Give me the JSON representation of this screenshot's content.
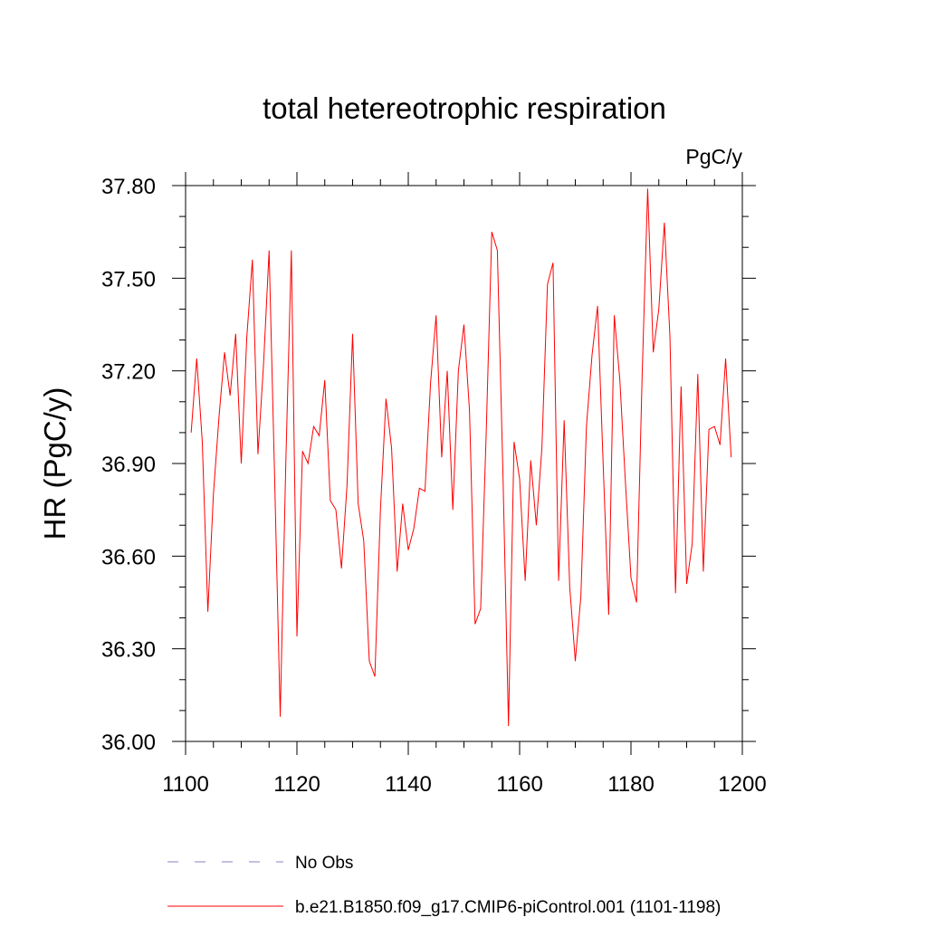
{
  "chart_data": {
    "type": "line",
    "title": "total hetereotrophic respiration",
    "units_label": "PgC/y",
    "ylabel": "HR  (PgC/y)",
    "xlabel": "",
    "xlim": [
      1100,
      1200
    ],
    "ylim": [
      36.0,
      37.8
    ],
    "x_ticks": [
      1100,
      1120,
      1140,
      1160,
      1180,
      1200
    ],
    "x_tick_labels": [
      "1100",
      "1120",
      "1140",
      "1160",
      "1180",
      "1200"
    ],
    "y_ticks": [
      36.0,
      36.3,
      36.6,
      36.9,
      37.2,
      37.5,
      37.8
    ],
    "y_tick_labels": [
      "36.00",
      "36.30",
      "36.60",
      "36.90",
      "37.20",
      "37.50",
      "37.80"
    ],
    "grid": false,
    "legend_position": "bottom",
    "series": [
      {
        "name": "No Obs",
        "color": "#8e7cc3",
        "style": "dashed",
        "x": [],
        "values": []
      },
      {
        "name": "b.e21.B1850.f09_g17.CMIP6-piControl.001 (1101-1198)",
        "color": "#ff0000",
        "style": "solid",
        "x": [
          1101,
          1102,
          1103,
          1104,
          1105,
          1106,
          1107,
          1108,
          1109,
          1110,
          1111,
          1112,
          1113,
          1114,
          1115,
          1116,
          1117,
          1118,
          1119,
          1120,
          1121,
          1122,
          1123,
          1124,
          1125,
          1126,
          1127,
          1128,
          1129,
          1130,
          1131,
          1132,
          1133,
          1134,
          1135,
          1136,
          1137,
          1138,
          1139,
          1140,
          1141,
          1142,
          1143,
          1144,
          1145,
          1146,
          1147,
          1148,
          1149,
          1150,
          1151,
          1152,
          1153,
          1154,
          1155,
          1156,
          1157,
          1158,
          1159,
          1160,
          1161,
          1162,
          1163,
          1164,
          1165,
          1166,
          1167,
          1168,
          1169,
          1170,
          1171,
          1172,
          1173,
          1174,
          1175,
          1176,
          1177,
          1178,
          1179,
          1180,
          1181,
          1182,
          1183,
          1184,
          1185,
          1186,
          1187,
          1188,
          1189,
          1190,
          1191,
          1192,
          1193,
          1194,
          1195,
          1196,
          1197,
          1198
        ],
        "values": [
          37.0,
          37.24,
          36.97,
          36.42,
          36.8,
          37.05,
          37.26,
          37.12,
          37.32,
          36.9,
          37.31,
          37.56,
          36.93,
          37.22,
          37.59,
          36.85,
          36.08,
          36.9,
          37.59,
          36.34,
          36.94,
          36.9,
          37.02,
          36.99,
          37.17,
          36.78,
          36.75,
          36.56,
          36.83,
          37.32,
          36.77,
          36.65,
          36.26,
          36.21,
          36.75,
          37.11,
          36.95,
          36.55,
          36.77,
          36.62,
          36.69,
          36.82,
          36.81,
          37.16,
          37.38,
          36.92,
          37.2,
          36.75,
          37.2,
          37.35,
          37.07,
          36.38,
          36.43,
          37.0,
          37.65,
          37.59,
          36.87,
          36.05,
          36.97,
          36.85,
          36.52,
          36.91,
          36.7,
          36.95,
          37.48,
          37.55,
          36.52,
          37.04,
          36.5,
          36.26,
          36.47,
          37.02,
          37.25,
          37.41,
          36.9,
          36.41,
          37.38,
          37.17,
          36.84,
          36.53,
          36.45,
          37.18,
          37.79,
          37.26,
          37.4,
          37.68,
          37.31,
          36.48,
          37.15,
          36.51,
          36.64,
          37.19,
          36.55,
          37.01,
          37.02,
          36.96,
          37.24,
          36.92
        ]
      }
    ]
  }
}
